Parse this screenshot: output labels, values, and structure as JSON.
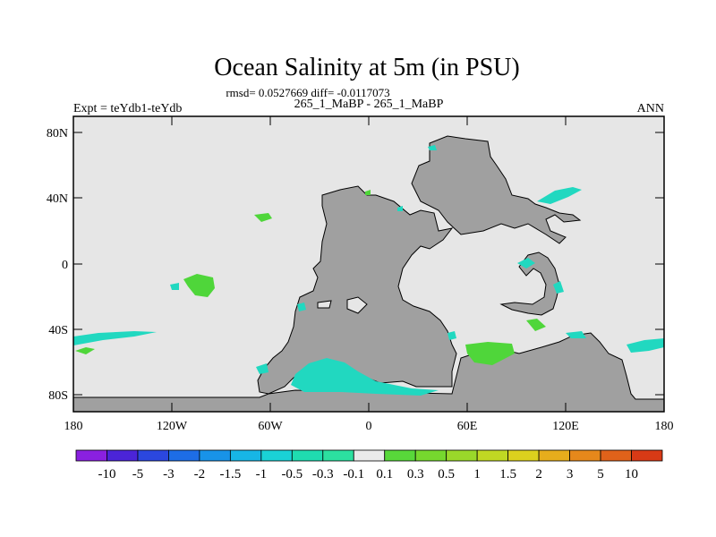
{
  "header": {
    "title": "Ocean Salinity at 5m (in PSU)",
    "stats": "rmsd= 0.0527669 diff= -0.0117073",
    "left_label": "Expt = teYdb1-teYdb",
    "center_label": "265_1_MaBP - 265_1_MaBP",
    "right_label": "ANN"
  },
  "axes": {
    "lat_ticks": [
      "80N",
      "40N",
      "0",
      "40S",
      "80S"
    ],
    "lon_ticks": [
      "180",
      "120W",
      "60W",
      "0",
      "60E",
      "120E",
      "180"
    ]
  },
  "colors": {
    "background": "#e6e6e6",
    "land": "#a0a0a0",
    "cyan_anomaly": "#21d8c0",
    "green_anomaly": "#4fd63a",
    "bright_green": "#5ee52a"
  },
  "colorbar": {
    "labels": [
      "-10",
      "-5",
      "-3",
      "-2",
      "-1.5",
      "-1",
      "-0.5",
      "-0.3",
      "-0.1",
      "0.1",
      "0.3",
      "0.5",
      "1",
      "1.5",
      "2",
      "3",
      "5",
      "10"
    ],
    "colors": [
      "#8a20e0",
      "#4b24d8",
      "#2b47df",
      "#1d6de6",
      "#1893e8",
      "#17b6e6",
      "#1ad2d6",
      "#1fdcb0",
      "#2ce0a0",
      "#eaeaea",
      "#58d83a",
      "#76d82e",
      "#9ad82a",
      "#c0d823",
      "#dcd01e",
      "#e6ad1c",
      "#e6881b",
      "#e0621a",
      "#d83a16"
    ]
  }
}
